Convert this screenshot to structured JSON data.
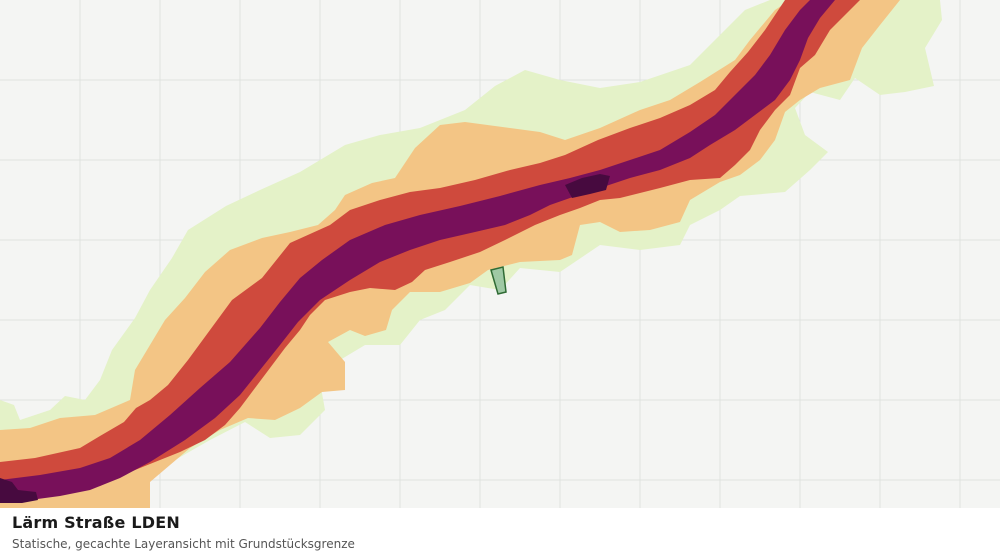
{
  "caption": {
    "title": "Lärm Straße LDEN",
    "subtitle": "Statische, gecachte Layeransicht mit Grundstücksgrenze"
  },
  "map": {
    "background_color": "#f4f5f3",
    "grid_color": "#dfe2df",
    "noise_classes": [
      {
        "name": "class-1",
        "color": "#e4f2c8"
      },
      {
        "name": "class-2",
        "color": "#f3c585"
      },
      {
        "name": "class-3",
        "color": "#cf4a3d"
      },
      {
        "name": "class-4",
        "color": "#78105a"
      },
      {
        "name": "class-5",
        "color": "#470a3f"
      }
    ],
    "parcel": {
      "fill": "#9fc9a4",
      "stroke": "#2f6b34"
    }
  }
}
